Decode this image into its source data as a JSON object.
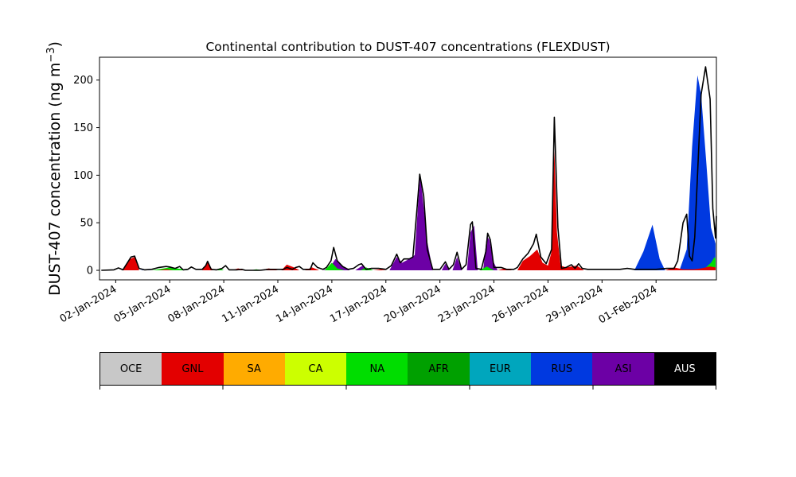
{
  "chart_data": {
    "type": "area",
    "stacked": true,
    "title": "Continental contribution to DUST-407 concentrations (FLEXDUST)",
    "ylabel": "DUST-407 concentration (ng m⁻³)",
    "ylabel_parts": {
      "main": "DUST-407 concentration (ng m",
      "exp": "−3",
      "close": ")"
    },
    "ylim": [
      -10,
      224
    ],
    "yticks": [
      0,
      50,
      100,
      150,
      200
    ],
    "xlim_days": [
      -0.9,
      33.35
    ],
    "x_tick_labels": [
      "02-Jan-2024",
      "05-Jan-2024",
      "08-Jan-2024",
      "11-Jan-2024",
      "14-Jan-2024",
      "17-Jan-2024",
      "20-Jan-2024",
      "23-Jan-2024",
      "26-Jan-2024",
      "29-Jan-2024",
      "01-Feb-2024"
    ],
    "x_tick_days": [
      0,
      3,
      6,
      9,
      12,
      15,
      18,
      21,
      24,
      27,
      30
    ],
    "x_start_date": "02-Jan-2024",
    "series_colors": {
      "GNL": "#e30000",
      "NA": "#00dd00",
      "AFR": "#00a000",
      "EUR": "#00a6bd",
      "RUS": "#0039e0",
      "ASI": "#6c00a5"
    },
    "series": [
      {
        "name": "RUS",
        "points": [
          [
            1.3,
            0
          ],
          [
            1.7,
            0.5
          ],
          [
            2.0,
            0
          ],
          [
            3.0,
            0
          ],
          [
            3.5,
            1.5
          ],
          [
            4.0,
            0
          ],
          [
            4.8,
            0
          ],
          [
            5.1,
            1
          ],
          [
            5.4,
            0
          ],
          [
            11.8,
            0
          ],
          [
            12.1,
            4
          ],
          [
            12.5,
            0
          ],
          [
            28.8,
            0
          ],
          [
            29.3,
            20
          ],
          [
            29.8,
            48
          ],
          [
            30.0,
            30
          ],
          [
            30.2,
            12
          ],
          [
            30.5,
            0
          ],
          [
            31.3,
            0
          ],
          [
            31.7,
            22
          ],
          [
            32.0,
            130
          ],
          [
            32.3,
            205
          ],
          [
            32.5,
            185
          ],
          [
            32.8,
            110
          ],
          [
            33.05,
            45
          ],
          [
            33.3,
            28
          ]
        ]
      },
      {
        "name": "ASI",
        "points": [
          [
            11.5,
            0
          ],
          [
            11.9,
            3
          ],
          [
            12.2,
            12
          ],
          [
            12.6,
            4
          ],
          [
            13.0,
            0
          ],
          [
            13.3,
            0
          ],
          [
            13.7,
            5
          ],
          [
            14.0,
            0
          ],
          [
            14.5,
            0
          ],
          [
            15.2,
            0
          ],
          [
            15.6,
            14
          ],
          [
            15.9,
            8
          ],
          [
            16.2,
            11
          ],
          [
            16.6,
            16
          ],
          [
            16.75,
            60
          ],
          [
            16.9,
            98
          ],
          [
            17.0,
            85
          ],
          [
            17.3,
            30
          ],
          [
            17.6,
            0
          ],
          [
            18.1,
            0
          ],
          [
            18.3,
            7
          ],
          [
            18.5,
            0
          ],
          [
            18.7,
            0
          ],
          [
            18.95,
            14
          ],
          [
            19.2,
            0
          ],
          [
            19.5,
            0
          ],
          [
            19.7,
            40
          ],
          [
            19.9,
            47
          ],
          [
            20.1,
            0
          ],
          [
            20.4,
            0
          ],
          [
            20.6,
            36
          ],
          [
            20.75,
            32
          ],
          [
            20.95,
            10
          ],
          [
            21.2,
            0
          ]
        ]
      },
      {
        "name": "NA",
        "points": [
          [
            2.0,
            0
          ],
          [
            2.5,
            1.5
          ],
          [
            3.0,
            3
          ],
          [
            3.6,
            1.5
          ],
          [
            4.0,
            0
          ],
          [
            5.6,
            0
          ],
          [
            5.8,
            2
          ],
          [
            6.0,
            0
          ],
          [
            7.5,
            0
          ],
          [
            7.8,
            1
          ],
          [
            8.2,
            0
          ],
          [
            11.6,
            0
          ],
          [
            12.0,
            8
          ],
          [
            12.3,
            2
          ],
          [
            12.7,
            0
          ],
          [
            13.6,
            0
          ],
          [
            13.9,
            3
          ],
          [
            14.3,
            0
          ],
          [
            20.2,
            0
          ],
          [
            20.6,
            4
          ],
          [
            21.0,
            0
          ],
          [
            32.6,
            0
          ],
          [
            33.05,
            8
          ],
          [
            33.25,
            14
          ],
          [
            33.3,
            12
          ]
        ]
      },
      {
        "name": "GNL",
        "points": [
          [
            -0.8,
            0
          ],
          [
            0.4,
            0
          ],
          [
            0.8,
            12
          ],
          [
            1.05,
            14
          ],
          [
            1.3,
            0
          ],
          [
            2.4,
            0
          ],
          [
            2.8,
            1
          ],
          [
            3.2,
            0
          ],
          [
            4.8,
            0
          ],
          [
            5.1,
            8
          ],
          [
            5.4,
            0
          ],
          [
            6.4,
            0
          ],
          [
            6.8,
            2
          ],
          [
            7.2,
            0
          ],
          [
            8.0,
            0
          ],
          [
            8.5,
            2
          ],
          [
            9.0,
            0
          ],
          [
            9.2,
            0
          ],
          [
            9.5,
            6
          ],
          [
            9.9,
            3
          ],
          [
            10.2,
            0
          ],
          [
            10.5,
            0
          ],
          [
            10.9,
            3
          ],
          [
            11.3,
            0
          ],
          [
            14.3,
            0
          ],
          [
            14.7,
            1
          ],
          [
            15.0,
            0
          ],
          [
            21.2,
            0
          ],
          [
            21.6,
            2
          ],
          [
            22.0,
            0
          ],
          [
            22.3,
            0
          ],
          [
            22.6,
            10
          ],
          [
            23.0,
            15
          ],
          [
            23.4,
            22
          ],
          [
            23.7,
            8
          ],
          [
            24.0,
            5
          ],
          [
            24.2,
            20
          ],
          [
            24.35,
            128
          ],
          [
            24.5,
            40
          ],
          [
            24.7,
            5
          ],
          [
            25.0,
            3
          ],
          [
            25.3,
            4
          ],
          [
            25.6,
            5
          ],
          [
            26.0,
            0
          ],
          [
            30.5,
            0
          ],
          [
            31.0,
            3
          ],
          [
            31.5,
            1
          ],
          [
            32.1,
            1
          ],
          [
            32.5,
            2
          ],
          [
            33.0,
            4
          ],
          [
            33.3,
            3
          ]
        ]
      }
    ],
    "total": [
      [
        -0.8,
        0
      ],
      [
        -0.1,
        0.5
      ],
      [
        0.15,
        2.5
      ],
      [
        0.4,
        0.5
      ],
      [
        0.85,
        14
      ],
      [
        1.05,
        15
      ],
      [
        1.3,
        2
      ],
      [
        1.6,
        0.5
      ],
      [
        2.0,
        1
      ],
      [
        2.4,
        3
      ],
      [
        2.8,
        4
      ],
      [
        3.0,
        3.5
      ],
      [
        3.3,
        2
      ],
      [
        3.55,
        4
      ],
      [
        3.75,
        0.5
      ],
      [
        4.0,
        1
      ],
      [
        4.2,
        3.5
      ],
      [
        4.45,
        1
      ],
      [
        4.8,
        1
      ],
      [
        5.0,
        5
      ],
      [
        5.1,
        9.5
      ],
      [
        5.3,
        1
      ],
      [
        5.6,
        0.5
      ],
      [
        5.9,
        2
      ],
      [
        6.1,
        5
      ],
      [
        6.3,
        0.5
      ],
      [
        6.7,
        0.5
      ],
      [
        7.0,
        1
      ],
      [
        7.2,
        0
      ],
      [
        8.0,
        0
      ],
      [
        8.5,
        1
      ],
      [
        9.0,
        1
      ],
      [
        9.3,
        1
      ],
      [
        9.5,
        3
      ],
      [
        9.8,
        1
      ],
      [
        10.0,
        3
      ],
      [
        10.2,
        4
      ],
      [
        10.4,
        1
      ],
      [
        10.8,
        1
      ],
      [
        10.95,
        8
      ],
      [
        11.2,
        3
      ],
      [
        11.5,
        1
      ],
      [
        11.7,
        3
      ],
      [
        11.95,
        10
      ],
      [
        12.1,
        24
      ],
      [
        12.3,
        10
      ],
      [
        12.6,
        4
      ],
      [
        12.9,
        1
      ],
      [
        13.2,
        2
      ],
      [
        13.5,
        6
      ],
      [
        13.65,
        7
      ],
      [
        13.9,
        1
      ],
      [
        14.2,
        2
      ],
      [
        14.6,
        2
      ],
      [
        15.0,
        1
      ],
      [
        15.3,
        5
      ],
      [
        15.6,
        17
      ],
      [
        15.8,
        8
      ],
      [
        16.0,
        12
      ],
      [
        16.3,
        12
      ],
      [
        16.5,
        14
      ],
      [
        16.75,
        70
      ],
      [
        16.88,
        101
      ],
      [
        17.1,
        78
      ],
      [
        17.3,
        22
      ],
      [
        17.6,
        1
      ],
      [
        18.0,
        1
      ],
      [
        18.3,
        9
      ],
      [
        18.5,
        1
      ],
      [
        18.75,
        6
      ],
      [
        18.95,
        19
      ],
      [
        19.2,
        1
      ],
      [
        19.45,
        6
      ],
      [
        19.7,
        48
      ],
      [
        19.8,
        51
      ],
      [
        20.0,
        2
      ],
      [
        20.3,
        1
      ],
      [
        20.55,
        20
      ],
      [
        20.65,
        39
      ],
      [
        20.8,
        32
      ],
      [
        21.0,
        3
      ],
      [
        21.4,
        3
      ],
      [
        21.7,
        1
      ],
      [
        22.1,
        1
      ],
      [
        22.3,
        3
      ],
      [
        22.6,
        12
      ],
      [
        22.9,
        18
      ],
      [
        23.2,
        28
      ],
      [
        23.35,
        38
      ],
      [
        23.6,
        14
      ],
      [
        23.9,
        7
      ],
      [
        24.2,
        22
      ],
      [
        24.35,
        161
      ],
      [
        24.55,
        45
      ],
      [
        24.75,
        2
      ],
      [
        25.0,
        3
      ],
      [
        25.3,
        6
      ],
      [
        25.5,
        2
      ],
      [
        25.7,
        7
      ],
      [
        25.9,
        2
      ],
      [
        26.2,
        1
      ],
      [
        27.0,
        1
      ],
      [
        27.6,
        1
      ],
      [
        28.0,
        1
      ],
      [
        28.4,
        2
      ],
      [
        28.8,
        1
      ],
      [
        29.2,
        1
      ],
      [
        29.5,
        1
      ],
      [
        30.0,
        1
      ],
      [
        30.6,
        2
      ],
      [
        31.0,
        2
      ],
      [
        31.2,
        10
      ],
      [
        31.5,
        50
      ],
      [
        31.7,
        59
      ],
      [
        31.85,
        15
      ],
      [
        32.0,
        10
      ],
      [
        32.15,
        35
      ],
      [
        32.5,
        185
      ],
      [
        32.75,
        214
      ],
      [
        33.0,
        180
      ],
      [
        33.15,
        65
      ],
      [
        33.3,
        34
      ],
      [
        33.35,
        57
      ]
    ]
  },
  "legend": {
    "items": [
      {
        "label": "OCE",
        "color": "#c8c8c8"
      },
      {
        "label": "GNL",
        "color": "#e30000"
      },
      {
        "label": "SA",
        "color": "#ffab00"
      },
      {
        "label": "CA",
        "color": "#ccff00"
      },
      {
        "label": "NA",
        "color": "#00dd00"
      },
      {
        "label": "AFR",
        "color": "#00a000"
      },
      {
        "label": "EUR",
        "color": "#00a6bd"
      },
      {
        "label": "RUS",
        "color": "#0039e0"
      },
      {
        "label": "ASI",
        "color": "#6c00a5"
      },
      {
        "label": "AUS",
        "color": "#000000",
        "text_color": "#ffffff"
      }
    ]
  }
}
